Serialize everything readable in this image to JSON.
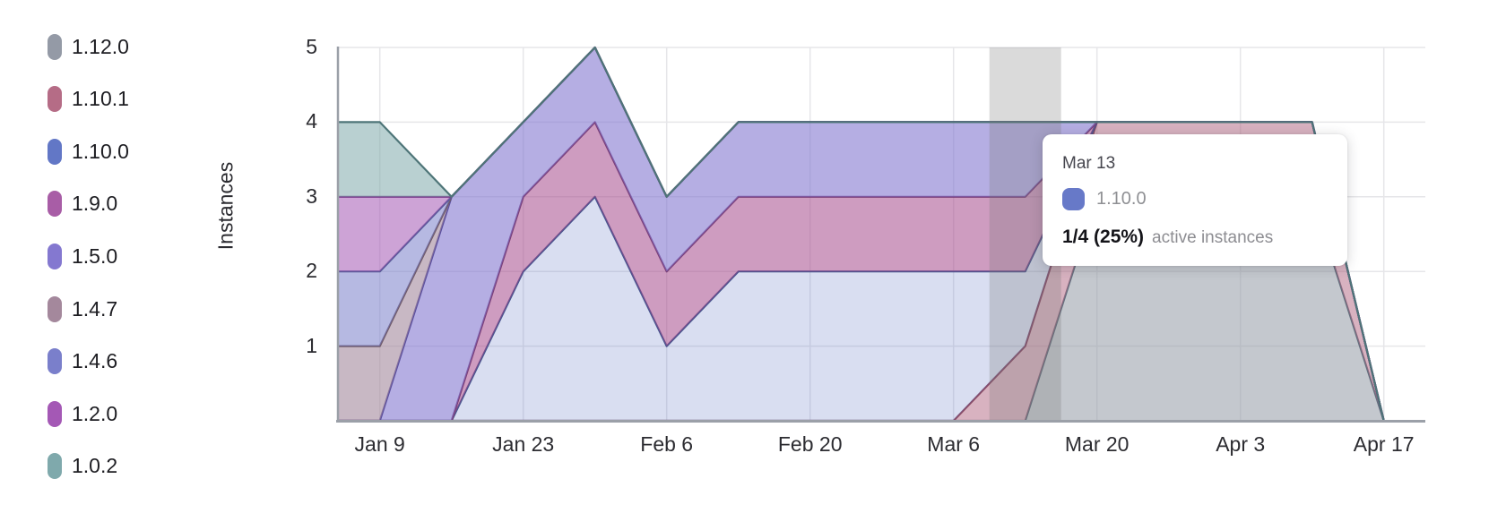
{
  "chart_data": {
    "type": "area",
    "stacked": true,
    "title": "",
    "ylabel": "Instances",
    "ylim": [
      0,
      5
    ],
    "grid": true,
    "legend_position": "left",
    "x": [
      "Jan 5",
      "Jan 9",
      "Jan 16",
      "Jan 23",
      "Jan 30",
      "Feb 6",
      "Feb 13",
      "Feb 20",
      "Feb 27",
      "Mar 6",
      "Mar 13",
      "Mar 20",
      "Mar 27",
      "Apr 3",
      "Apr 10",
      "Apr 17"
    ],
    "stack_order": "bottom-to-top",
    "series": [
      {
        "name": "1.12.0",
        "color": "#949aa6",
        "line": "#626e7d",
        "fill": "rgba(148,154,166,0.55)",
        "values": [
          0,
          0,
          0,
          0,
          0,
          0,
          0,
          0,
          0,
          0,
          0,
          3,
          3,
          3,
          3,
          0
        ]
      },
      {
        "name": "1.10.1",
        "color": "#b56c86",
        "line": "#8a4a63",
        "fill": "rgba(181,108,134,0.52)",
        "values": [
          0,
          0,
          0,
          0,
          0,
          0,
          0,
          0,
          0,
          0,
          1,
          1,
          1,
          1,
          1,
          0
        ]
      },
      {
        "name": "1.10.0",
        "color": "#6277c6",
        "line": "#46548e",
        "fill": "rgba(98,119,198,0.24)",
        "values": [
          0,
          0,
          0,
          2,
          3,
          1,
          2,
          2,
          2,
          2,
          1,
          0,
          0,
          0,
          0,
          0
        ]
      },
      {
        "name": "1.9.0",
        "color": "#a85da6",
        "line": "#7a3f78",
        "fill": "rgba(165,75,140,0.55)",
        "values": [
          0,
          0,
          0,
          1,
          1,
          1,
          1,
          1,
          1,
          1,
          1,
          0,
          0,
          0,
          0,
          0
        ]
      },
      {
        "name": "1.5.0",
        "color": "#8478d0",
        "line": "#5a4f9e",
        "fill": "rgba(132,120,208,0.6)",
        "values": [
          0,
          0,
          3,
          1,
          1,
          1,
          1,
          1,
          1,
          1,
          1,
          0,
          0,
          0,
          0,
          0
        ]
      },
      {
        "name": "1.4.7",
        "color": "#a4889c",
        "line": "#6f5a68",
        "fill": "rgba(164,136,156,0.6)",
        "values": [
          1,
          1,
          0,
          0,
          0,
          0,
          0,
          0,
          0,
          0,
          0,
          0,
          0,
          0,
          0,
          0
        ]
      },
      {
        "name": "1.4.6",
        "color": "#7a7fcb",
        "line": "#545896",
        "fill": "rgba(122,127,203,0.55)",
        "values": [
          1,
          1,
          0,
          0,
          0,
          0,
          0,
          0,
          0,
          0,
          0,
          0,
          0,
          0,
          0,
          0
        ]
      },
      {
        "name": "1.2.0",
        "color": "#a458b5",
        "line": "#7a3b8a",
        "fill": "rgba(164,88,181,0.55)",
        "values": [
          1,
          1,
          0,
          0,
          0,
          0,
          0,
          0,
          0,
          0,
          0,
          0,
          0,
          0,
          0,
          0
        ]
      },
      {
        "name": "1.0.2",
        "color": "#7fa9ac",
        "line": "#4e7578",
        "fill": "rgba(127,169,172,0.55)",
        "values": [
          1,
          1,
          0,
          0,
          0,
          0,
          0,
          0,
          0,
          0,
          0,
          0,
          0,
          0,
          0,
          0
        ]
      }
    ],
    "hover": {
      "date": "Mar 13",
      "band_color": "rgba(120,120,120,0.27)"
    }
  },
  "legend": {
    "items": [
      {
        "version": "1.12.0",
        "color": "#949aa6"
      },
      {
        "version": "1.10.1",
        "color": "#b56c86"
      },
      {
        "version": "1.10.0",
        "color": "#6277c6"
      },
      {
        "version": "1.9.0",
        "color": "#a85da6"
      },
      {
        "version": "1.5.0",
        "color": "#8478d0"
      },
      {
        "version": "1.4.7",
        "color": "#a4889c"
      },
      {
        "version": "1.4.6",
        "color": "#7a7fcb"
      },
      {
        "version": "1.2.0",
        "color": "#a458b5"
      },
      {
        "version": "1.0.2",
        "color": "#7fa9ac"
      }
    ]
  },
  "y_axis": {
    "title": "Instances",
    "ticks": [
      5,
      4,
      3,
      2,
      1
    ]
  },
  "x_axis": {
    "ticks": [
      "Jan 9",
      "Jan 23",
      "Feb 6",
      "Feb 20",
      "Mar 6",
      "Mar 20",
      "Apr 3",
      "Apr 17"
    ]
  },
  "tooltip": {
    "date": "Mar 13",
    "series_label": "1.10.0",
    "swatch_color": "#6779c8",
    "value": "1/4 (25%)",
    "suffix": "active instances"
  }
}
